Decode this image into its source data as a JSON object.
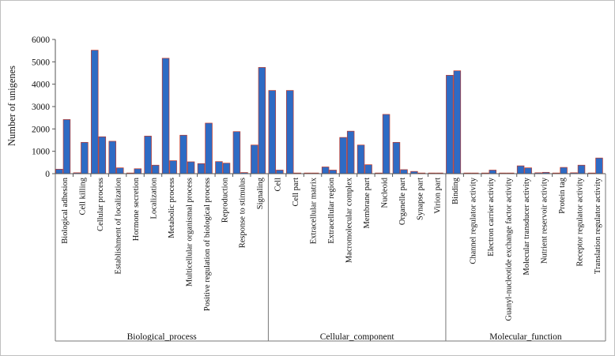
{
  "chart_data": {
    "type": "bar",
    "ylabel": "Number of unigenes",
    "ylim": [
      0,
      6000
    ],
    "yticks": [
      0,
      1000,
      2000,
      3000,
      4000,
      5000,
      6000
    ],
    "grid": false,
    "legend": "none",
    "bar_color": "#2e6bc4",
    "bar_outline_color": "#c0392b",
    "groups": [
      {
        "name": "Biological_process",
        "categories": [
          {
            "label": "Biological adhesion",
            "values": [
              200,
              2420
            ]
          },
          {
            "label": "Cell killing",
            "values": [
              40,
              1400
            ]
          },
          {
            "label": "Cellular process",
            "values": [
              5520,
              1650
            ]
          },
          {
            "label": "Establishment of localization",
            "values": [
              1450,
              260
            ]
          },
          {
            "label": "Hormone secretion",
            "values": [
              30,
              220
            ]
          },
          {
            "label": "Localization",
            "values": [
              1680,
              380
            ]
          },
          {
            "label": "Metabolic process",
            "values": [
              5160,
              580
            ]
          },
          {
            "label": "Multicellular organismal process",
            "values": [
              1720,
              530
            ]
          },
          {
            "label": "Positive regulation of biological process",
            "values": [
              450,
              2260
            ]
          },
          {
            "label": "Reproduction",
            "values": [
              540,
              470
            ]
          },
          {
            "label": "Response to stimulus",
            "values": [
              1880,
              50
            ]
          },
          {
            "label": "Signaling",
            "values": [
              1280,
              4750
            ]
          }
        ]
      },
      {
        "name": "Cellular_component",
        "categories": [
          {
            "label": "Cell",
            "values": [
              3720,
              160
            ]
          },
          {
            "label": "Cell part",
            "values": [
              3720,
              30
            ]
          },
          {
            "label": "Extracellular matrix",
            "values": [
              30,
              30
            ]
          },
          {
            "label": "Extracellular region",
            "values": [
              300,
              160
            ]
          },
          {
            "label": "Macromolecular complex",
            "values": [
              1620,
              1900
            ]
          },
          {
            "label": "Membrane part",
            "values": [
              1280,
              400
            ]
          },
          {
            "label": "Nucleoid",
            "values": [
              30,
              2650
            ]
          },
          {
            "label": "Organelle part",
            "values": [
              1400,
              180
            ]
          },
          {
            "label": "Synapse part",
            "values": [
              100,
              30
            ]
          },
          {
            "label": "Virion part",
            "values": [
              30,
              30
            ]
          }
        ]
      },
      {
        "name": "Molecular_function",
        "categories": [
          {
            "label": "Binding",
            "values": [
              4400,
              4600
            ]
          },
          {
            "label": "Channel regulator activity",
            "values": [
              30,
              30
            ]
          },
          {
            "label": "Electron carrier activity",
            "values": [
              30,
              160
            ]
          },
          {
            "label": "Guanyl-nucleotide exchange factor activity",
            "values": [
              30,
              30
            ]
          },
          {
            "label": "Molecular transducer activity",
            "values": [
              350,
              260
            ]
          },
          {
            "label": "Nutrient reservoir activity",
            "values": [
              40,
              60
            ]
          },
          {
            "label": "Protein tag",
            "values": [
              30,
              280
            ]
          },
          {
            "label": "Receptor regulator activity",
            "values": [
              40,
              380
            ]
          },
          {
            "label": "Translation regulator activity",
            "values": [
              30,
              700
            ]
          }
        ]
      }
    ]
  }
}
